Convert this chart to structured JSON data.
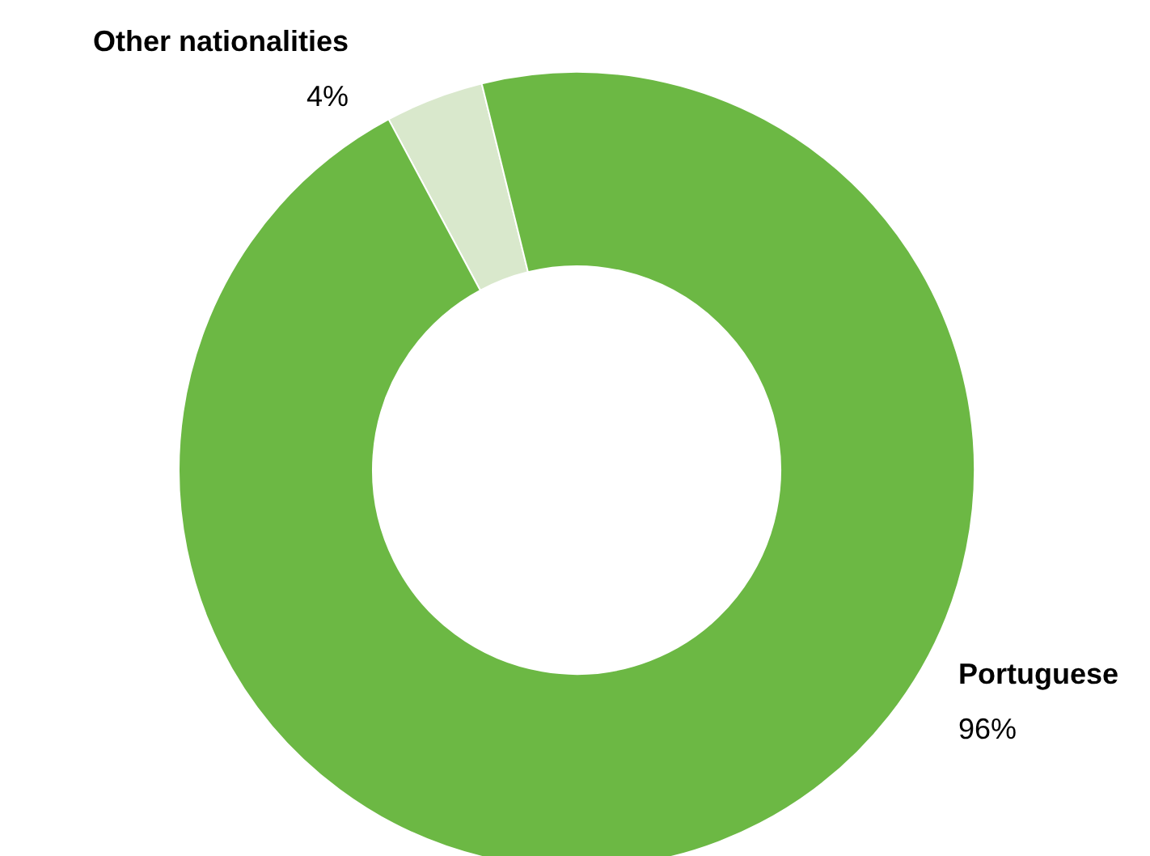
{
  "chart_data": {
    "type": "donut",
    "categories": [
      "Other nationalities",
      "Portuguese"
    ],
    "values": [
      4,
      96
    ],
    "colors": [
      "#d9e8cc",
      "#6cb844"
    ],
    "value_labels": [
      "4%",
      "96%"
    ]
  }
}
